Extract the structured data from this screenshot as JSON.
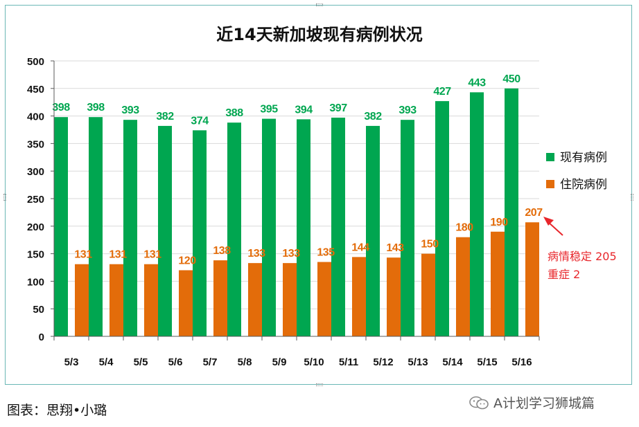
{
  "chart_data": {
    "type": "bar",
    "title": "近14天新加坡现有病例状况",
    "categories": [
      "5/3",
      "5/4",
      "5/5",
      "5/6",
      "5/7",
      "5/8",
      "5/9",
      "5/10",
      "5/11",
      "5/12",
      "5/13",
      "5/14",
      "5/15",
      "5/16"
    ],
    "series": [
      {
        "name": "现有病例",
        "color": "#00a650",
        "values": [
          398,
          398,
          393,
          382,
          374,
          388,
          395,
          394,
          397,
          382,
          393,
          427,
          443,
          450
        ]
      },
      {
        "name": "住院病例",
        "color": "#e36c0a",
        "values": [
          131,
          131,
          131,
          120,
          138,
          133,
          133,
          135,
          144,
          143,
          150,
          180,
          190,
          207
        ]
      }
    ],
    "ylim": [
      0,
      500
    ],
    "yticks": [
      0,
      50,
      100,
      150,
      200,
      250,
      300,
      350,
      400,
      450,
      500
    ],
    "grid": true,
    "legend": "right",
    "annotation": {
      "lines": [
        "病情稳定 205",
        "重症 2"
      ],
      "color": "#e8262b",
      "points_to": "5/16 住院病例"
    }
  },
  "caption": "图表：思翔•小璐",
  "watermark": "A计划学习狮城篇"
}
